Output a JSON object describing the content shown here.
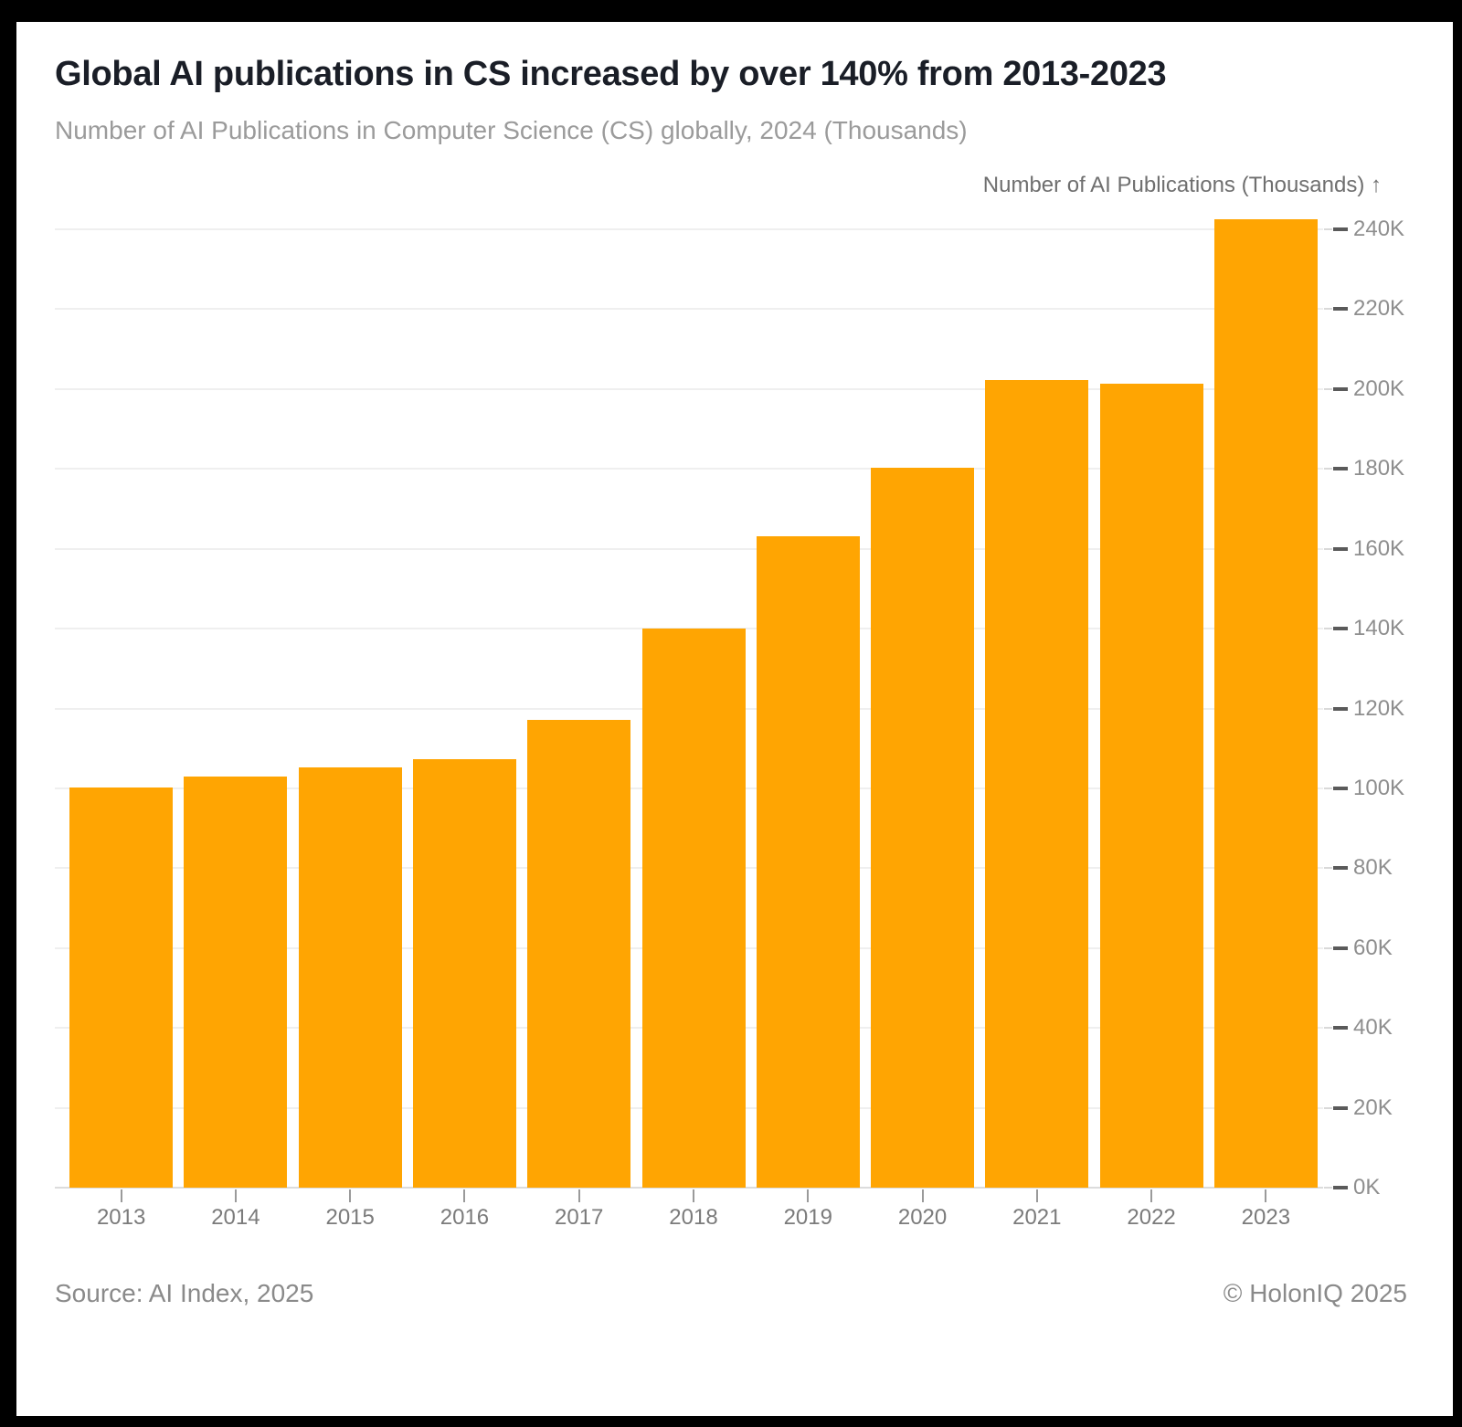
{
  "header": {
    "title": "Global AI publications in CS increased by over 140% from 2013-2023",
    "subtitle": "Number of AI Publications in Computer Science (CS) globally, 2024 (Thousands)"
  },
  "y_axis": {
    "title": "Number of AI Publications (Thousands) ↑",
    "tick_labels": [
      "0K",
      "20K",
      "40K",
      "60K",
      "80K",
      "100K",
      "120K",
      "140K",
      "160K",
      "180K",
      "200K",
      "220K",
      "240K"
    ]
  },
  "x_axis": {
    "tick_labels": [
      "2013",
      "2014",
      "2015",
      "2016",
      "2017",
      "2018",
      "2019",
      "2020",
      "2021",
      "2022",
      "2023"
    ]
  },
  "footer": {
    "source": "Source: AI Index, 2025",
    "copyright": "© HolonIQ 2025"
  },
  "colors": {
    "bar": "#FFA502",
    "gridline": "#efefef",
    "baseline": "#dcdcdc",
    "tick_mini": "#d9d9d9",
    "tick_dash": "#5a5a5a",
    "tick_label": "#8e8e8e",
    "x_tick": "#9a9a9a",
    "year_label": "#7b7b7b",
    "title": "#1a1e27",
    "subtitle": "#9b9b9b",
    "axis_title": "#6f6f6f",
    "footer": "#8a8a8a"
  },
  "chart_data": {
    "type": "bar",
    "title": "Global AI publications in CS increased by over 140% from 2013-2023",
    "subtitle": "Number of AI Publications in Computer Science (CS) globally, 2024 (Thousands)",
    "categories": [
      "2013",
      "2014",
      "2015",
      "2016",
      "2017",
      "2018",
      "2019",
      "2020",
      "2021",
      "2022",
      "2023"
    ],
    "values": [
      100.3,
      103.0,
      105.3,
      107.3,
      117.2,
      140.0,
      163.2,
      180.3,
      202.3,
      201.4,
      242.5
    ],
    "unit": "thousands of publications",
    "xlabel": "",
    "ylabel": "Number of AI Publications (Thousands)",
    "ylim": [
      0,
      240
    ],
    "ytick_step": 20,
    "y_axis_side": "right",
    "grid": "horizontal",
    "legend": "none",
    "bar_color": "#FFA502",
    "source": "Source: AI Index, 2025",
    "attribution": "© HolonIQ 2025"
  }
}
